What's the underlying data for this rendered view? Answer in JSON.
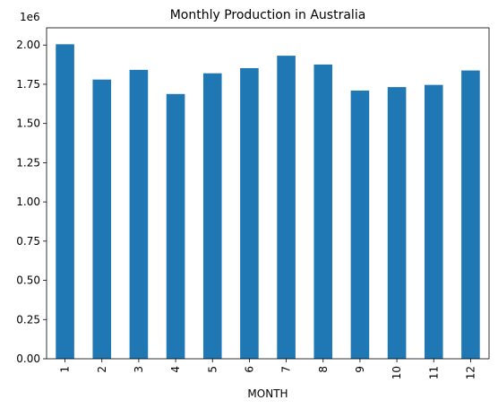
{
  "chart_data": {
    "type": "bar",
    "title": "Monthly Production in Australia",
    "xlabel": "MONTH",
    "ylabel": "",
    "y_scale_label": "1e6",
    "categories": [
      "1",
      "2",
      "3",
      "4",
      "5",
      "6",
      "7",
      "8",
      "9",
      "10",
      "11",
      "12"
    ],
    "values": [
      2005000,
      1780000,
      1842000,
      1688000,
      1820000,
      1853000,
      1932000,
      1876000,
      1710000,
      1732000,
      1746000,
      1838000
    ],
    "ylim": [
      0,
      2110000
    ],
    "yticks": [
      0,
      250000,
      500000,
      750000,
      1000000,
      1250000,
      1500000,
      1750000,
      2000000
    ],
    "ytick_labels": [
      "0.00",
      "0.25",
      "0.50",
      "0.75",
      "1.00",
      "1.25",
      "1.50",
      "1.75",
      "2.00"
    ],
    "grid": false,
    "legend": "none",
    "bar_color": "#1f77b4"
  }
}
